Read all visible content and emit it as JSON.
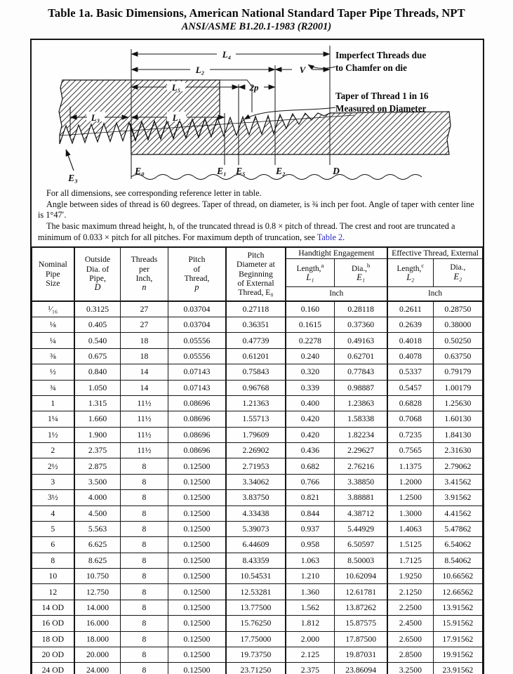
{
  "title": "Table 1a.  Basic Dimensions, American National Standard Taper Pipe Threads, NPT",
  "subtitle": "ANSI/ASME B1.20.1-1983 (R2001)",
  "diagram": {
    "dims": {
      "l4": "L₄",
      "l2": "L₂",
      "l5": "L₅",
      "l3": "L₃",
      "l1": "L₁",
      "two_p": "2p",
      "v": "V"
    },
    "planes": {
      "e0": "E₀",
      "e1": "E₁",
      "e5": "E₅",
      "e2": "E₂",
      "e3": "E₃",
      "d": "D"
    },
    "callout_imperfect_line1": "Imperfect Threads due",
    "callout_imperfect_line2": "to Chamfer on die",
    "callout_taper_line1": "Taper of Thread 1 in 16",
    "callout_taper_line2": "Measured on Diameter"
  },
  "notes": {
    "para1": "For all dimensions, see corresponding reference letter in table.",
    "para2": "Angle between sides of thread is 60 degrees. Taper of thread, on diameter, is ¾ inch per foot. Angle of taper with center line is 1°47′.",
    "para3_pre": "The basic maximum thread height, h, of the truncated thread is 0.8 × pitch of thread. The crest and root are truncated a minimum of 0.033 × pitch for all pitches. For maximum depth of truncation, see ",
    "para3_link": "Table 2",
    "para3_post": "."
  },
  "table": {
    "simple_columns": [
      {
        "lines": [
          "Nominal",
          "Pipe",
          "Size"
        ],
        "italic_last": false
      },
      {
        "lines": [
          "Outside",
          "Dia. of",
          "Pipe,",
          "D"
        ],
        "italic_last": true
      },
      {
        "lines": [
          "Threads",
          "per",
          "Inch,",
          "n"
        ],
        "italic_last": true
      },
      {
        "lines": [
          "Pitch",
          "of",
          "Thread,",
          "p"
        ],
        "italic_last": true
      },
      {
        "lines": [
          "Pitch",
          "Diameter at",
          "Beginning",
          "of External",
          "Thread, E₀"
        ],
        "italic_last": false
      }
    ],
    "groups": [
      {
        "title": "Handtight Engagement",
        "sub": [
          {
            "label": "Length,",
            "marker": "a",
            "symbol": "L₁"
          },
          {
            "label": "Dia.,",
            "marker": "b",
            "symbol": "E₁"
          }
        ],
        "unit": "Inch"
      },
      {
        "title": "Effective Thread, External",
        "sub": [
          {
            "label": "Length,",
            "marker": "c",
            "symbol": "L₂"
          },
          {
            "label": "Dia.,",
            "marker": "",
            "symbol": "E₂"
          }
        ],
        "unit": "Inch"
      }
    ],
    "rows": [
      [
        "¹⁄₁₆",
        "0.3125",
        "27",
        "0.03704",
        "0.27118",
        "0.160",
        "0.28118",
        "0.2611",
        "0.28750"
      ],
      [
        "⅛",
        "0.405",
        "27",
        "0.03704",
        "0.36351",
        "0.1615",
        "0.37360",
        "0.2639",
        "0.38000"
      ],
      [
        "¼",
        "0.540",
        "18",
        "0.05556",
        "0.47739",
        "0.2278",
        "0.49163",
        "0.4018",
        "0.50250"
      ],
      [
        "⅜",
        "0.675",
        "18",
        "0.05556",
        "0.61201",
        "0.240",
        "0.62701",
        "0.4078",
        "0.63750"
      ],
      [
        "½",
        "0.840",
        "14",
        "0.07143",
        "0.75843",
        "0.320",
        "0.77843",
        "0.5337",
        "0.79179"
      ],
      [
        "¾",
        "1.050",
        "14",
        "0.07143",
        "0.96768",
        "0.339",
        "0.98887",
        "0.5457",
        "1.00179"
      ],
      [
        "1",
        "1.315",
        "11½",
        "0.08696",
        "1.21363",
        "0.400",
        "1.23863",
        "0.6828",
        "1.25630"
      ],
      [
        "1¼",
        "1.660",
        "11½",
        "0.08696",
        "1.55713",
        "0.420",
        "1.58338",
        "0.7068",
        "1.60130"
      ],
      [
        "1½",
        "1.900",
        "11½",
        "0.08696",
        "1.79609",
        "0.420",
        "1.82234",
        "0.7235",
        "1.84130"
      ],
      [
        "2",
        "2.375",
        "11½",
        "0.08696",
        "2.26902",
        "0.436",
        "2.29627",
        "0.7565",
        "2.31630"
      ],
      [
        "2½",
        "2.875",
        "8",
        "0.12500",
        "2.71953",
        "0.682",
        "2.76216",
        "1.1375",
        "2.79062"
      ],
      [
        "3",
        "3.500",
        "8",
        "0.12500",
        "3.34062",
        "0.766",
        "3.38850",
        "1.2000",
        "3.41562"
      ],
      [
        "3½",
        "4.000",
        "8",
        "0.12500",
        "3.83750",
        "0.821",
        "3.88881",
        "1.2500",
        "3.91562"
      ],
      [
        "4",
        "4.500",
        "8",
        "0.12500",
        "4.33438",
        "0.844",
        "4.38712",
        "1.3000",
        "4.41562"
      ],
      [
        "5",
        "5.563",
        "8",
        "0.12500",
        "5.39073",
        "0.937",
        "5.44929",
        "1.4063",
        "5.47862"
      ],
      [
        "6",
        "6.625",
        "8",
        "0.12500",
        "6.44609",
        "0.958",
        "6.50597",
        "1.5125",
        "6.54062"
      ],
      [
        "8",
        "8.625",
        "8",
        "0.12500",
        "8.43359",
        "1.063",
        "8.50003",
        "1.7125",
        "8.54062"
      ],
      [
        "10",
        "10.750",
        "8",
        "0.12500",
        "10.54531",
        "1.210",
        "10.62094",
        "1.9250",
        "10.66562"
      ],
      [
        "12",
        "12.750",
        "8",
        "0.12500",
        "12.53281",
        "1.360",
        "12.61781",
        "2.1250",
        "12.66562"
      ],
      [
        "14 OD",
        "14.000",
        "8",
        "0.12500",
        "13.77500",
        "1.562",
        "13.87262",
        "2.2500",
        "13.91562"
      ],
      [
        "16 OD",
        "16.000",
        "8",
        "0.12500",
        "15.76250",
        "1.812",
        "15.87575",
        "2.4500",
        "15.91562"
      ],
      [
        "18 OD",
        "18.000",
        "8",
        "0.12500",
        "17.75000",
        "2.000",
        "17.87500",
        "2.6500",
        "17.91562"
      ],
      [
        "20 OD",
        "20.000",
        "8",
        "0.12500",
        "19.73750",
        "2.125",
        "19.87031",
        "2.8500",
        "19.91562"
      ],
      [
        "24 OD",
        "24.000",
        "8",
        "0.12500",
        "23.71250",
        "2.375",
        "23.86094",
        "3.2500",
        "23.91562"
      ]
    ]
  }
}
